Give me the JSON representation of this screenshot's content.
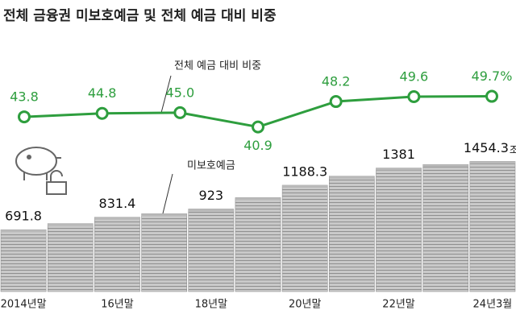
{
  "title": "전체 금융권 미보호예금 및 전체 예금 대비 비중",
  "chart_data": [
    {
      "type": "bar",
      "annotation": "미보호예금",
      "categories": [
        "2014년말",
        null,
        "16년말",
        null,
        "18년말",
        null,
        "20년말",
        null,
        "22년말",
        null,
        "24년3월"
      ],
      "values": [
        691.8,
        760,
        831.4,
        870,
        923,
        1050,
        1188.3,
        1290,
        1381,
        1420,
        1454.3
      ],
      "value_labels": [
        "691.8",
        null,
        "831.4",
        null,
        "923",
        null,
        "1188.3",
        null,
        "1381",
        null,
        "1454.3"
      ],
      "unit": "조원",
      "color": "#b9b9b9",
      "ylim": [
        0,
        1800
      ]
    },
    {
      "type": "line",
      "annotation": "전체 예금 대비 비중",
      "values": [
        43.8,
        44.8,
        45.0,
        40.9,
        48.2,
        49.6,
        49.7
      ],
      "value_labels": [
        "43.8",
        "44.8",
        "45.0",
        "40.9",
        "48.2",
        "49.6",
        "49.7%"
      ],
      "color": "#2e9e3e",
      "ylim": [
        20,
        60
      ]
    }
  ]
}
